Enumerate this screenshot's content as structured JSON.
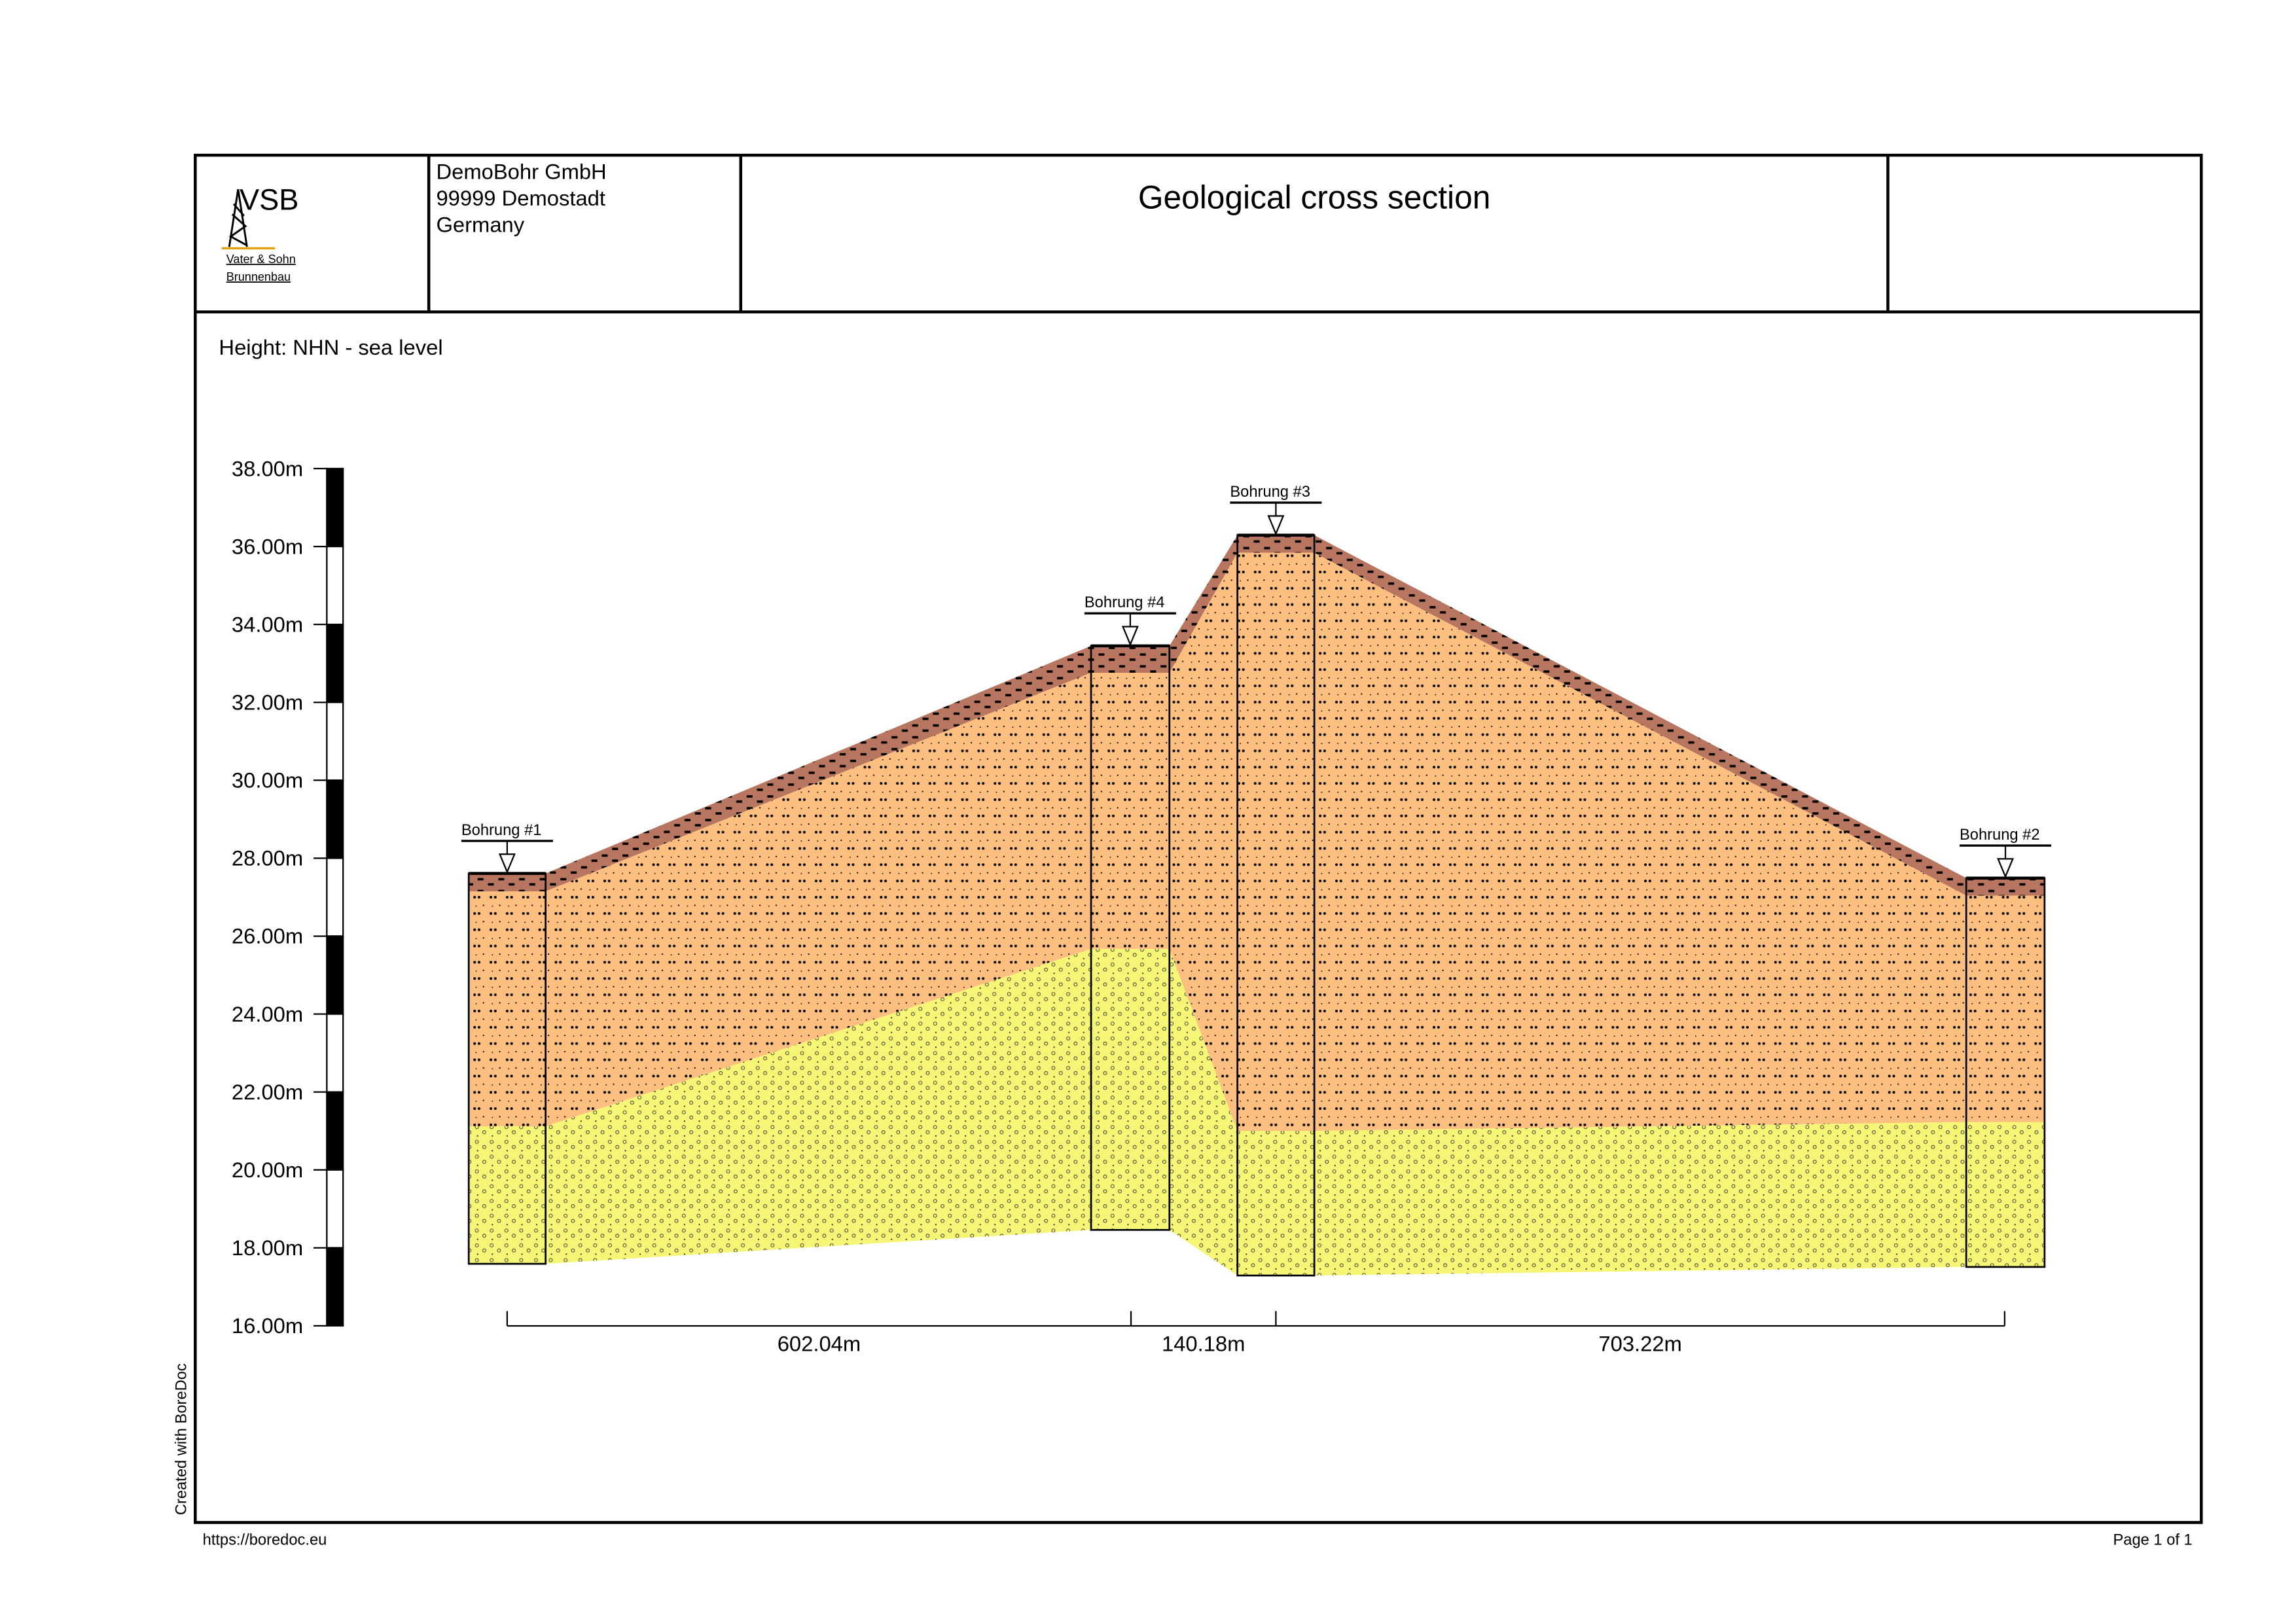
{
  "header": {
    "logo_text": "VSB",
    "logo_sub1": "Vater & Sohn",
    "logo_sub2": "Brunnenbau",
    "company": [
      "DemoBohr GmbH",
      "99999 Demostadt",
      "Germany"
    ],
    "title": "Geological cross section"
  },
  "height_note": "Height: NHN - sea level",
  "footer": {
    "url": "https://boredoc.eu",
    "page": "Page 1 of 1",
    "created": "Created with BoreDoc"
  },
  "scale": {
    "min": 16,
    "max": 38,
    "step": 2,
    "labels": [
      "38.00m",
      "36.00m",
      "34.00m",
      "32.00m",
      "30.00m",
      "28.00m",
      "26.00m",
      "24.00m",
      "22.00m",
      "20.00m",
      "18.00m",
      "16.00m"
    ]
  },
  "colors": {
    "topsoil": "#b87560",
    "sand": "#fdbf80",
    "gravel": "#f5f576"
  },
  "boreholes": [
    {
      "name": "Bohrung #1",
      "layers_m": [
        27.61,
        27.15,
        21.12,
        17.59
      ]
    },
    {
      "name": "Bohrung #4",
      "layers_m": [
        33.45,
        32.76,
        25.67,
        18.46
      ]
    },
    {
      "name": "Bohrung #3",
      "layers_m": [
        36.29,
        35.84,
        21.0,
        17.29
      ]
    },
    {
      "name": "Bohrung #2",
      "layers_m": [
        27.49,
        27.04,
        21.23,
        17.51
      ]
    }
  ],
  "distances": [
    "602.04m",
    "140.18m",
    "703.22m"
  ],
  "distances_m": [
    602.04,
    140.18,
    703.22
  ]
}
